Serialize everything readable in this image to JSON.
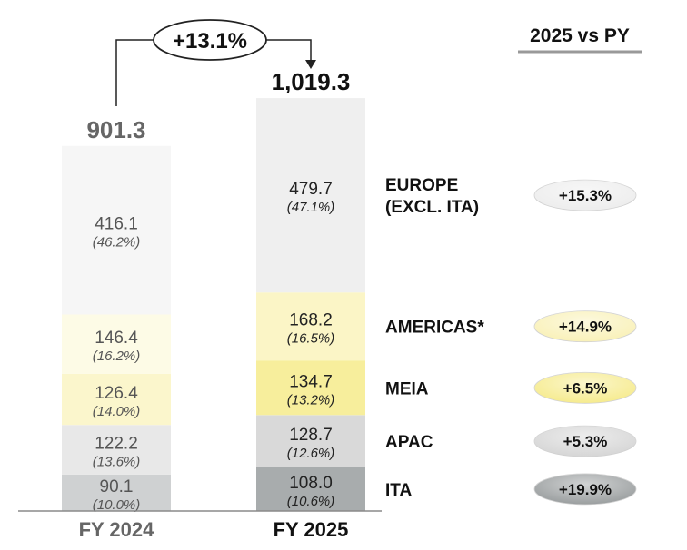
{
  "header": {
    "title": "2025 vs PY",
    "underline_color": "#999999"
  },
  "growth_callout": "+13.1%",
  "chart_data": {
    "type": "bar",
    "stacked": true,
    "categories": [
      "FY 2024",
      "FY 2025"
    ],
    "totals": [
      "901.3",
      "1,019.3"
    ],
    "series": [
      {
        "name": "ITA",
        "values": [
          90.1,
          108.0
        ],
        "labels": [
          "90.1",
          "108.0"
        ],
        "shares": [
          "(10.0%)",
          "(10.6%)"
        ],
        "growth": "+19.9%",
        "colors": [
          "#cfd1d2",
          "#a8acad"
        ],
        "badge_color": "#9a9e9f"
      },
      {
        "name": "APAC",
        "values": [
          122.2,
          128.7
        ],
        "labels": [
          "122.2",
          "128.7"
        ],
        "shares": [
          "(13.6%)",
          "(12.6%)"
        ],
        "growth": "+5.3%",
        "colors": [
          "#e8e8e8",
          "#d9d9d9"
        ],
        "badge_color": "#d6d6d6"
      },
      {
        "name": "MEIA",
        "values": [
          126.4,
          134.7
        ],
        "labels": [
          "126.4",
          "134.7"
        ],
        "shares": [
          "(14.0%)",
          "(13.2%)"
        ],
        "growth": "+6.5%",
        "colors": [
          "#fbf6cc",
          "#f7ee9c"
        ],
        "badge_color": "#f6eb8e"
      },
      {
        "name": "AMERICAS*",
        "values": [
          146.4,
          168.2
        ],
        "labels": [
          "146.4",
          "168.2"
        ],
        "shares": [
          "(16.2%)",
          "(16.5%)"
        ],
        "growth": "+14.9%",
        "colors": [
          "#fdfbe6",
          "#fbf5c6"
        ],
        "badge_color": "#f9f1b8"
      },
      {
        "name": "EUROPE (EXCL. ITA)",
        "label_lines": [
          "EUROPE",
          "(EXCL. ITA)"
        ],
        "values": [
          416.1,
          479.7
        ],
        "labels": [
          "416.1",
          "479.7"
        ],
        "shares": [
          "(46.2%)",
          "(47.1%)"
        ],
        "growth": "+15.3%",
        "colors": [
          "#f6f6f6",
          "#efefef"
        ],
        "badge_color": "#ededed"
      }
    ]
  }
}
